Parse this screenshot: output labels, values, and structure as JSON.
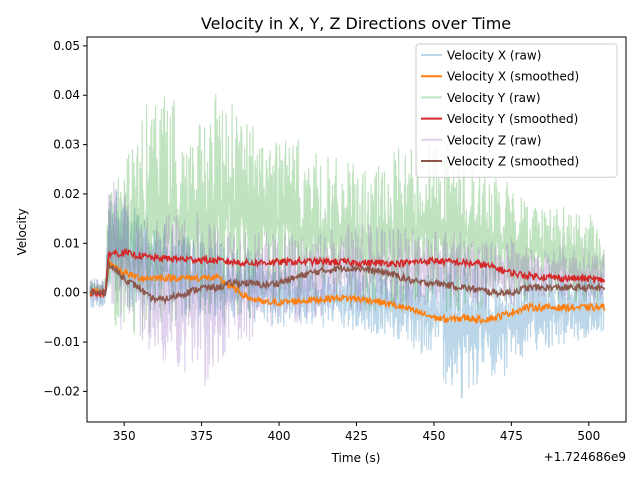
{
  "chart_data": {
    "type": "line",
    "title": "Velocity in X, Y, Z Directions over Time",
    "xlabel": "Time (s)",
    "ylabel": "Velocity",
    "x_offset_label": "+1.724686e9",
    "xlim": [
      338,
      512
    ],
    "ylim": [
      -0.0262,
      0.0518
    ],
    "x_ticks": [
      {
        "value": 350,
        "label": "350"
      },
      {
        "value": 375,
        "label": "375"
      },
      {
        "value": 400,
        "label": "400"
      },
      {
        "value": 425,
        "label": "425"
      },
      {
        "value": 450,
        "label": "450"
      },
      {
        "value": 475,
        "label": "475"
      },
      {
        "value": 500,
        "label": "500"
      }
    ],
    "y_ticks": [
      {
        "value": -0.02,
        "label": "−0.02"
      },
      {
        "value": -0.01,
        "label": "−0.01"
      },
      {
        "value": 0.0,
        "label": "0.00"
      },
      {
        "value": 0.01,
        "label": "0.01"
      },
      {
        "value": 0.02,
        "label": "0.02"
      },
      {
        "value": 0.03,
        "label": "0.03"
      },
      {
        "value": 0.04,
        "label": "0.04"
      },
      {
        "value": 0.05,
        "label": "0.05"
      }
    ],
    "grid": false,
    "legend_position": "top-right",
    "series": [
      {
        "name": "Velocity X (raw)",
        "kind": "raw",
        "color": "#1f77b4",
        "alpha": 0.3,
        "x": [
          339,
          344,
          345,
          350,
          360,
          370,
          380,
          390,
          400,
          410,
          420,
          430,
          440,
          450,
          455,
          460,
          465,
          470,
          475,
          480,
          490,
          500,
          505
        ],
        "low": [
          -0.003,
          -0.004,
          -0.002,
          -0.003,
          -0.004,
          -0.005,
          -0.005,
          -0.006,
          -0.007,
          -0.007,
          -0.008,
          -0.009,
          -0.01,
          -0.014,
          -0.02,
          -0.022,
          -0.018,
          -0.02,
          -0.016,
          -0.012,
          -0.011,
          -0.01,
          -0.009
        ],
        "high": [
          0.003,
          0.003,
          0.024,
          0.02,
          0.014,
          0.012,
          0.01,
          0.009,
          0.007,
          0.006,
          0.005,
          0.006,
          0.006,
          0.007,
          0.008,
          0.007,
          0.006,
          0.005,
          0.005,
          0.004,
          0.004,
          0.004,
          0.004
        ]
      },
      {
        "name": "Velocity X (smoothed)",
        "kind": "smoothed",
        "color": "#ff7f0e",
        "alpha": 1.0,
        "x": [
          339,
          344,
          345,
          350,
          355,
          360,
          370,
          380,
          385,
          390,
          395,
          400,
          410,
          420,
          430,
          440,
          445,
          450,
          455,
          460,
          465,
          470,
          475,
          480,
          490,
          500,
          505
        ],
        "values": [
          0.0,
          0.0,
          0.006,
          0.004,
          0.003,
          0.003,
          0.003,
          0.003,
          0.001,
          -0.001,
          -0.002,
          -0.002,
          -0.0015,
          -0.001,
          -0.0015,
          -0.003,
          -0.004,
          -0.005,
          -0.0055,
          -0.005,
          -0.0055,
          -0.005,
          -0.004,
          -0.003,
          -0.003,
          -0.003,
          -0.003
        ]
      },
      {
        "name": "Velocity Y (raw)",
        "kind": "raw",
        "color": "#2ca02c",
        "alpha": 0.3,
        "x": [
          339,
          344,
          345,
          350,
          355,
          360,
          362,
          365,
          370,
          375,
          380,
          385,
          390,
          395,
          400,
          410,
          420,
          430,
          440,
          450,
          460,
          470,
          475,
          480,
          490,
          500,
          505
        ],
        "low": [
          -0.001,
          -0.001,
          -0.006,
          -0.008,
          -0.009,
          -0.009,
          -0.01,
          -0.009,
          -0.008,
          -0.008,
          -0.007,
          -0.007,
          -0.006,
          -0.006,
          -0.005,
          -0.004,
          -0.004,
          -0.004,
          -0.004,
          -0.004,
          -0.004,
          -0.003,
          -0.003,
          -0.002,
          -0.002,
          -0.002,
          -0.002
        ],
        "high": [
          0.003,
          0.003,
          0.028,
          0.028,
          0.035,
          0.042,
          0.047,
          0.04,
          0.036,
          0.034,
          0.041,
          0.043,
          0.036,
          0.034,
          0.035,
          0.029,
          0.027,
          0.025,
          0.03,
          0.032,
          0.028,
          0.024,
          0.022,
          0.02,
          0.018,
          0.016,
          0.014
        ]
      },
      {
        "name": "Velocity Y (smoothed)",
        "kind": "smoothed",
        "color": "#d62728",
        "alpha": 1.0,
        "x": [
          339,
          344,
          345,
          350,
          360,
          370,
          380,
          390,
          400,
          410,
          420,
          430,
          440,
          450,
          460,
          465,
          470,
          475,
          480,
          490,
          500,
          505
        ],
        "values": [
          0.0,
          0.0,
          0.008,
          0.008,
          0.007,
          0.0068,
          0.0065,
          0.006,
          0.0062,
          0.0063,
          0.0062,
          0.006,
          0.006,
          0.0065,
          0.006,
          0.0058,
          0.005,
          0.004,
          0.0035,
          0.003,
          0.0028,
          0.0025
        ]
      },
      {
        "name": "Velocity Z (raw)",
        "kind": "raw",
        "color": "#9467bd",
        "alpha": 0.3,
        "x": [
          339,
          344,
          345,
          350,
          355,
          360,
          365,
          370,
          375,
          380,
          385,
          390,
          395,
          400,
          410,
          420,
          430,
          440,
          450,
          460,
          470,
          475,
          480,
          490,
          500,
          505
        ],
        "low": [
          -0.002,
          -0.003,
          -0.006,
          -0.009,
          -0.011,
          -0.013,
          -0.016,
          -0.018,
          -0.02,
          -0.015,
          -0.012,
          -0.01,
          -0.008,
          -0.007,
          -0.006,
          -0.004,
          -0.004,
          -0.004,
          -0.003,
          -0.003,
          -0.003,
          -0.003,
          -0.002,
          -0.002,
          -0.002,
          -0.002
        ],
        "high": [
          0.003,
          0.003,
          0.024,
          0.02,
          0.018,
          0.016,
          0.016,
          0.017,
          0.016,
          0.014,
          0.013,
          0.014,
          0.013,
          0.012,
          0.012,
          0.014,
          0.014,
          0.013,
          0.014,
          0.012,
          0.011,
          0.011,
          0.01,
          0.01,
          0.009,
          0.008
        ]
      },
      {
        "name": "Velocity Z (smoothed)",
        "kind": "smoothed",
        "color": "#8c564b",
        "alpha": 1.0,
        "x": [
          339,
          344,
          345,
          348,
          352,
          355,
          358,
          362,
          365,
          370,
          375,
          380,
          385,
          390,
          395,
          400,
          405,
          410,
          415,
          420,
          425,
          430,
          435,
          440,
          445,
          450,
          455,
          460,
          465,
          470,
          475,
          480,
          490,
          500,
          505
        ],
        "values": [
          0.0,
          0.0,
          0.006,
          0.004,
          0.002,
          0.001,
          -0.001,
          -0.0015,
          -0.001,
          0.0,
          0.001,
          0.001,
          0.002,
          0.002,
          0.0015,
          0.002,
          0.003,
          0.004,
          0.0045,
          0.005,
          0.005,
          0.0045,
          0.004,
          0.003,
          0.002,
          0.002,
          0.0015,
          0.001,
          0.0005,
          0.0,
          0.0,
          0.001,
          0.001,
          0.001,
          0.001
        ]
      }
    ]
  }
}
